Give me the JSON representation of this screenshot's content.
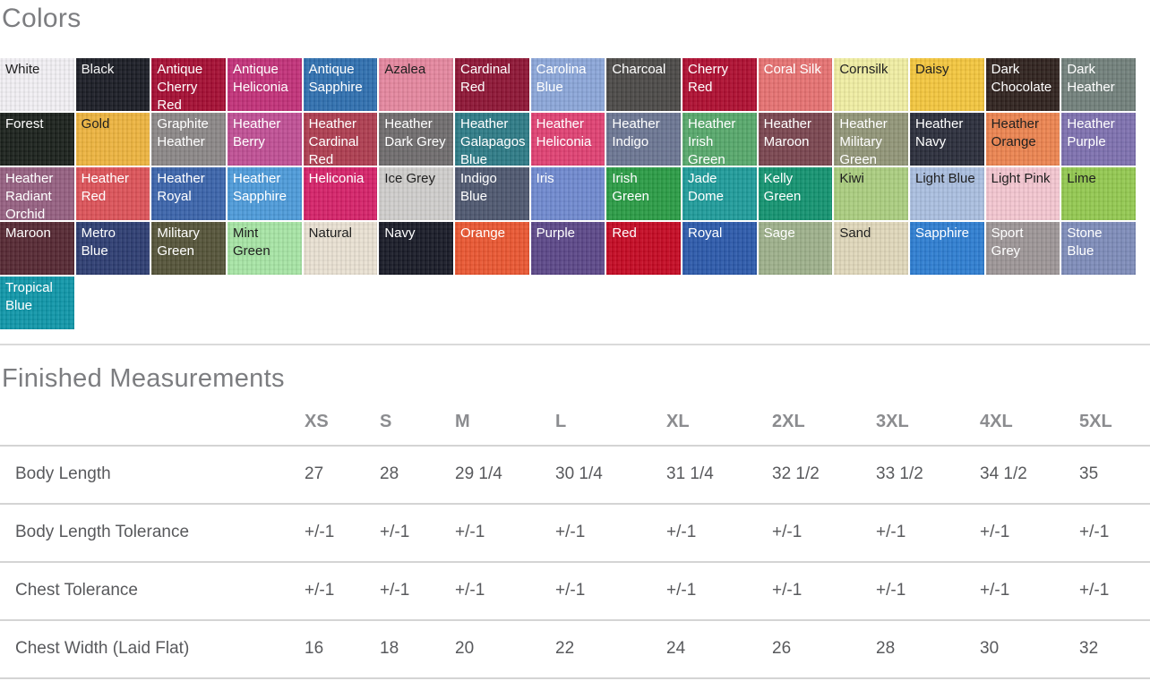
{
  "colors_section": {
    "title": "Colors",
    "swatches": [
      {
        "name": "White",
        "color": "#f2f0f4",
        "text": "#1f1f1f"
      },
      {
        "name": "Black",
        "color": "#1b1d25",
        "text": "#f5f5f5"
      },
      {
        "name": "Antique Cherry Red",
        "color": "#a50d33",
        "text": "#ffffff"
      },
      {
        "name": "Antique Heliconia",
        "color": "#c23179",
        "text": "#ffffff"
      },
      {
        "name": "Antique Sapphire",
        "color": "#2f70b0",
        "text": "#ffffff"
      },
      {
        "name": "Azalea",
        "color": "#e5879f",
        "text": "#1f1f1f"
      },
      {
        "name": "Cardinal Red",
        "color": "#8e1535",
        "text": "#ffffff"
      },
      {
        "name": "Carolina Blue",
        "color": "#8ba6d9",
        "text": "#ffffff"
      },
      {
        "name": "Charcoal",
        "color": "#4b4947",
        "text": "#ffffff"
      },
      {
        "name": "Cherry Red",
        "color": "#af0e31",
        "text": "#ffffff"
      },
      {
        "name": "Coral Silk",
        "color": "#e67272",
        "text": "#ffffff"
      },
      {
        "name": "Cornsilk",
        "color": "#f1eea3",
        "text": "#1f1f1f"
      },
      {
        "name": "Daisy",
        "color": "#f4c63e",
        "text": "#1f1f1f"
      },
      {
        "name": "Dark Chocolate",
        "color": "#2f221e",
        "text": "#ffffff"
      },
      {
        "name": "Dark Heather",
        "color": "#72807b",
        "text": "#ffffff"
      },
      {
        "name": "Forest",
        "color": "#1b211c",
        "text": "#ffffff"
      },
      {
        "name": "Gold",
        "color": "#edb43f",
        "text": "#1f1f1f"
      },
      {
        "name": "Graphite Heather",
        "color": "#8b8787",
        "text": "#ffffff"
      },
      {
        "name": "Heather Berry",
        "color": "#c04f95",
        "text": "#ffffff"
      },
      {
        "name": "Heather Cardinal Red",
        "color": "#ae3d50",
        "text": "#ffffff"
      },
      {
        "name": "Heather Dark Grey",
        "color": "#6f6c6d",
        "text": "#ffffff"
      },
      {
        "name": "Heather Galapagos Blue",
        "color": "#2d7b86",
        "text": "#ffffff"
      },
      {
        "name": "Heather Heliconia",
        "color": "#e04173",
        "text": "#ffffff"
      },
      {
        "name": "Heather Indigo",
        "color": "#6b7693",
        "text": "#ffffff"
      },
      {
        "name": "Heather Irish Green",
        "color": "#57a86b",
        "text": "#ffffff"
      },
      {
        "name": "Heather Maroon",
        "color": "#7a454f",
        "text": "#ffffff"
      },
      {
        "name": "Heather Military Green",
        "color": "#929678",
        "text": "#ffffff"
      },
      {
        "name": "Heather Navy",
        "color": "#2a2d3b",
        "text": "#ffffff"
      },
      {
        "name": "Heather Orange",
        "color": "#ec8450",
        "text": "#1f1f1f"
      },
      {
        "name": "Heather Purple",
        "color": "#7e71b0",
        "text": "#ffffff"
      },
      {
        "name": "Heather Radiant Orchid",
        "color": "#966081",
        "text": "#ffffff"
      },
      {
        "name": "Heather Red",
        "color": "#dd5359",
        "text": "#ffffff"
      },
      {
        "name": "Heather Royal",
        "color": "#3b64ab",
        "text": "#ffffff"
      },
      {
        "name": "Heather Sapphire",
        "color": "#4d9bda",
        "text": "#ffffff"
      },
      {
        "name": "Heliconia",
        "color": "#d62269",
        "text": "#ffffff"
      },
      {
        "name": "Ice Grey",
        "color": "#d0cecc",
        "text": "#1f1f1f"
      },
      {
        "name": "Indigo Blue",
        "color": "#4e5870",
        "text": "#ffffff"
      },
      {
        "name": "Iris",
        "color": "#7089cf",
        "text": "#ffffff"
      },
      {
        "name": "Irish Green",
        "color": "#2a9c45",
        "text": "#ffffff"
      },
      {
        "name": "Jade Dome",
        "color": "#1f9c9b",
        "text": "#ffffff"
      },
      {
        "name": "Kelly Green",
        "color": "#149471",
        "text": "#ffffff"
      },
      {
        "name": "Kiwi",
        "color": "#abce80",
        "text": "#1f1f1f"
      },
      {
        "name": "Light Blue",
        "color": "#aabfe0",
        "text": "#1f1f1f"
      },
      {
        "name": "Light Pink",
        "color": "#f4c6d1",
        "text": "#1f1f1f"
      },
      {
        "name": "Lime",
        "color": "#94c951",
        "text": "#1f1f1f"
      },
      {
        "name": "Maroon",
        "color": "#562833",
        "text": "#ffffff"
      },
      {
        "name": "Metro Blue",
        "color": "#2d3d72",
        "text": "#ffffff"
      },
      {
        "name": "Military Green",
        "color": "#555439",
        "text": "#ffffff"
      },
      {
        "name": "Mint Green",
        "color": "#a7e5a5",
        "text": "#1f1f1f"
      },
      {
        "name": "Natural",
        "color": "#e9e1d3",
        "text": "#1f1f1f"
      },
      {
        "name": "Navy",
        "color": "#191b27",
        "text": "#ffffff"
      },
      {
        "name": "Orange",
        "color": "#ea5732",
        "text": "#ffffff"
      },
      {
        "name": "Purple",
        "color": "#5c4788",
        "text": "#ffffff"
      },
      {
        "name": "Red",
        "color": "#c50923",
        "text": "#ffffff"
      },
      {
        "name": "Royal",
        "color": "#2c5aab",
        "text": "#ffffff"
      },
      {
        "name": "Sage",
        "color": "#9eb18b",
        "text": "#ffffff"
      },
      {
        "name": "Sand",
        "color": "#e0d8bb",
        "text": "#1f1f1f"
      },
      {
        "name": "Sapphire",
        "color": "#2e7ed2",
        "text": "#ffffff"
      },
      {
        "name": "Sport Grey",
        "color": "#9d9697",
        "text": "#ffffff"
      },
      {
        "name": "Stone Blue",
        "color": "#7e8cba",
        "text": "#ffffff"
      },
      {
        "name": "Tropical Blue",
        "color": "#0f97a9",
        "text": "#ffffff"
      }
    ]
  },
  "measurements_section": {
    "title": "Finished Measurements",
    "sizes": [
      "XS",
      "S",
      "M",
      "L",
      "XL",
      "2XL",
      "3XL",
      "4XL",
      "5XL"
    ],
    "rows": [
      {
        "label": "Body Length",
        "values": [
          "27",
          "28",
          "29 1/4",
          "30 1/4",
          "31 1/4",
          "32 1/2",
          "33 1/2",
          "34 1/2",
          "35"
        ]
      },
      {
        "label": "Body Length Tolerance",
        "values": [
          "+/-1",
          "+/-1",
          "+/-1",
          "+/-1",
          "+/-1",
          "+/-1",
          "+/-1",
          "+/-1",
          "+/-1"
        ]
      },
      {
        "label": "Chest Tolerance",
        "values": [
          "+/-1",
          "+/-1",
          "+/-1",
          "+/-1",
          "+/-1",
          "+/-1",
          "+/-1",
          "+/-1",
          "+/-1"
        ]
      },
      {
        "label": "Chest Width (Laid Flat)",
        "values": [
          "16",
          "18",
          "20",
          "22",
          "24",
          "26",
          "28",
          "30",
          "32"
        ]
      }
    ]
  },
  "chart_data": {
    "type": "table",
    "title": "Finished Measurements",
    "columns": [
      "XS",
      "S",
      "M",
      "L",
      "XL",
      "2XL",
      "3XL",
      "4XL",
      "5XL"
    ],
    "series": [
      {
        "name": "Body Length",
        "values": [
          27,
          28,
          29.25,
          30.25,
          31.25,
          32.5,
          33.5,
          34.5,
          35
        ]
      },
      {
        "name": "Body Length Tolerance",
        "values": [
          1,
          1,
          1,
          1,
          1,
          1,
          1,
          1,
          1
        ]
      },
      {
        "name": "Chest Tolerance",
        "values": [
          1,
          1,
          1,
          1,
          1,
          1,
          1,
          1,
          1
        ]
      },
      {
        "name": "Chest Width (Laid Flat)",
        "values": [
          16,
          18,
          20,
          22,
          24,
          26,
          28,
          30,
          32
        ]
      }
    ]
  }
}
